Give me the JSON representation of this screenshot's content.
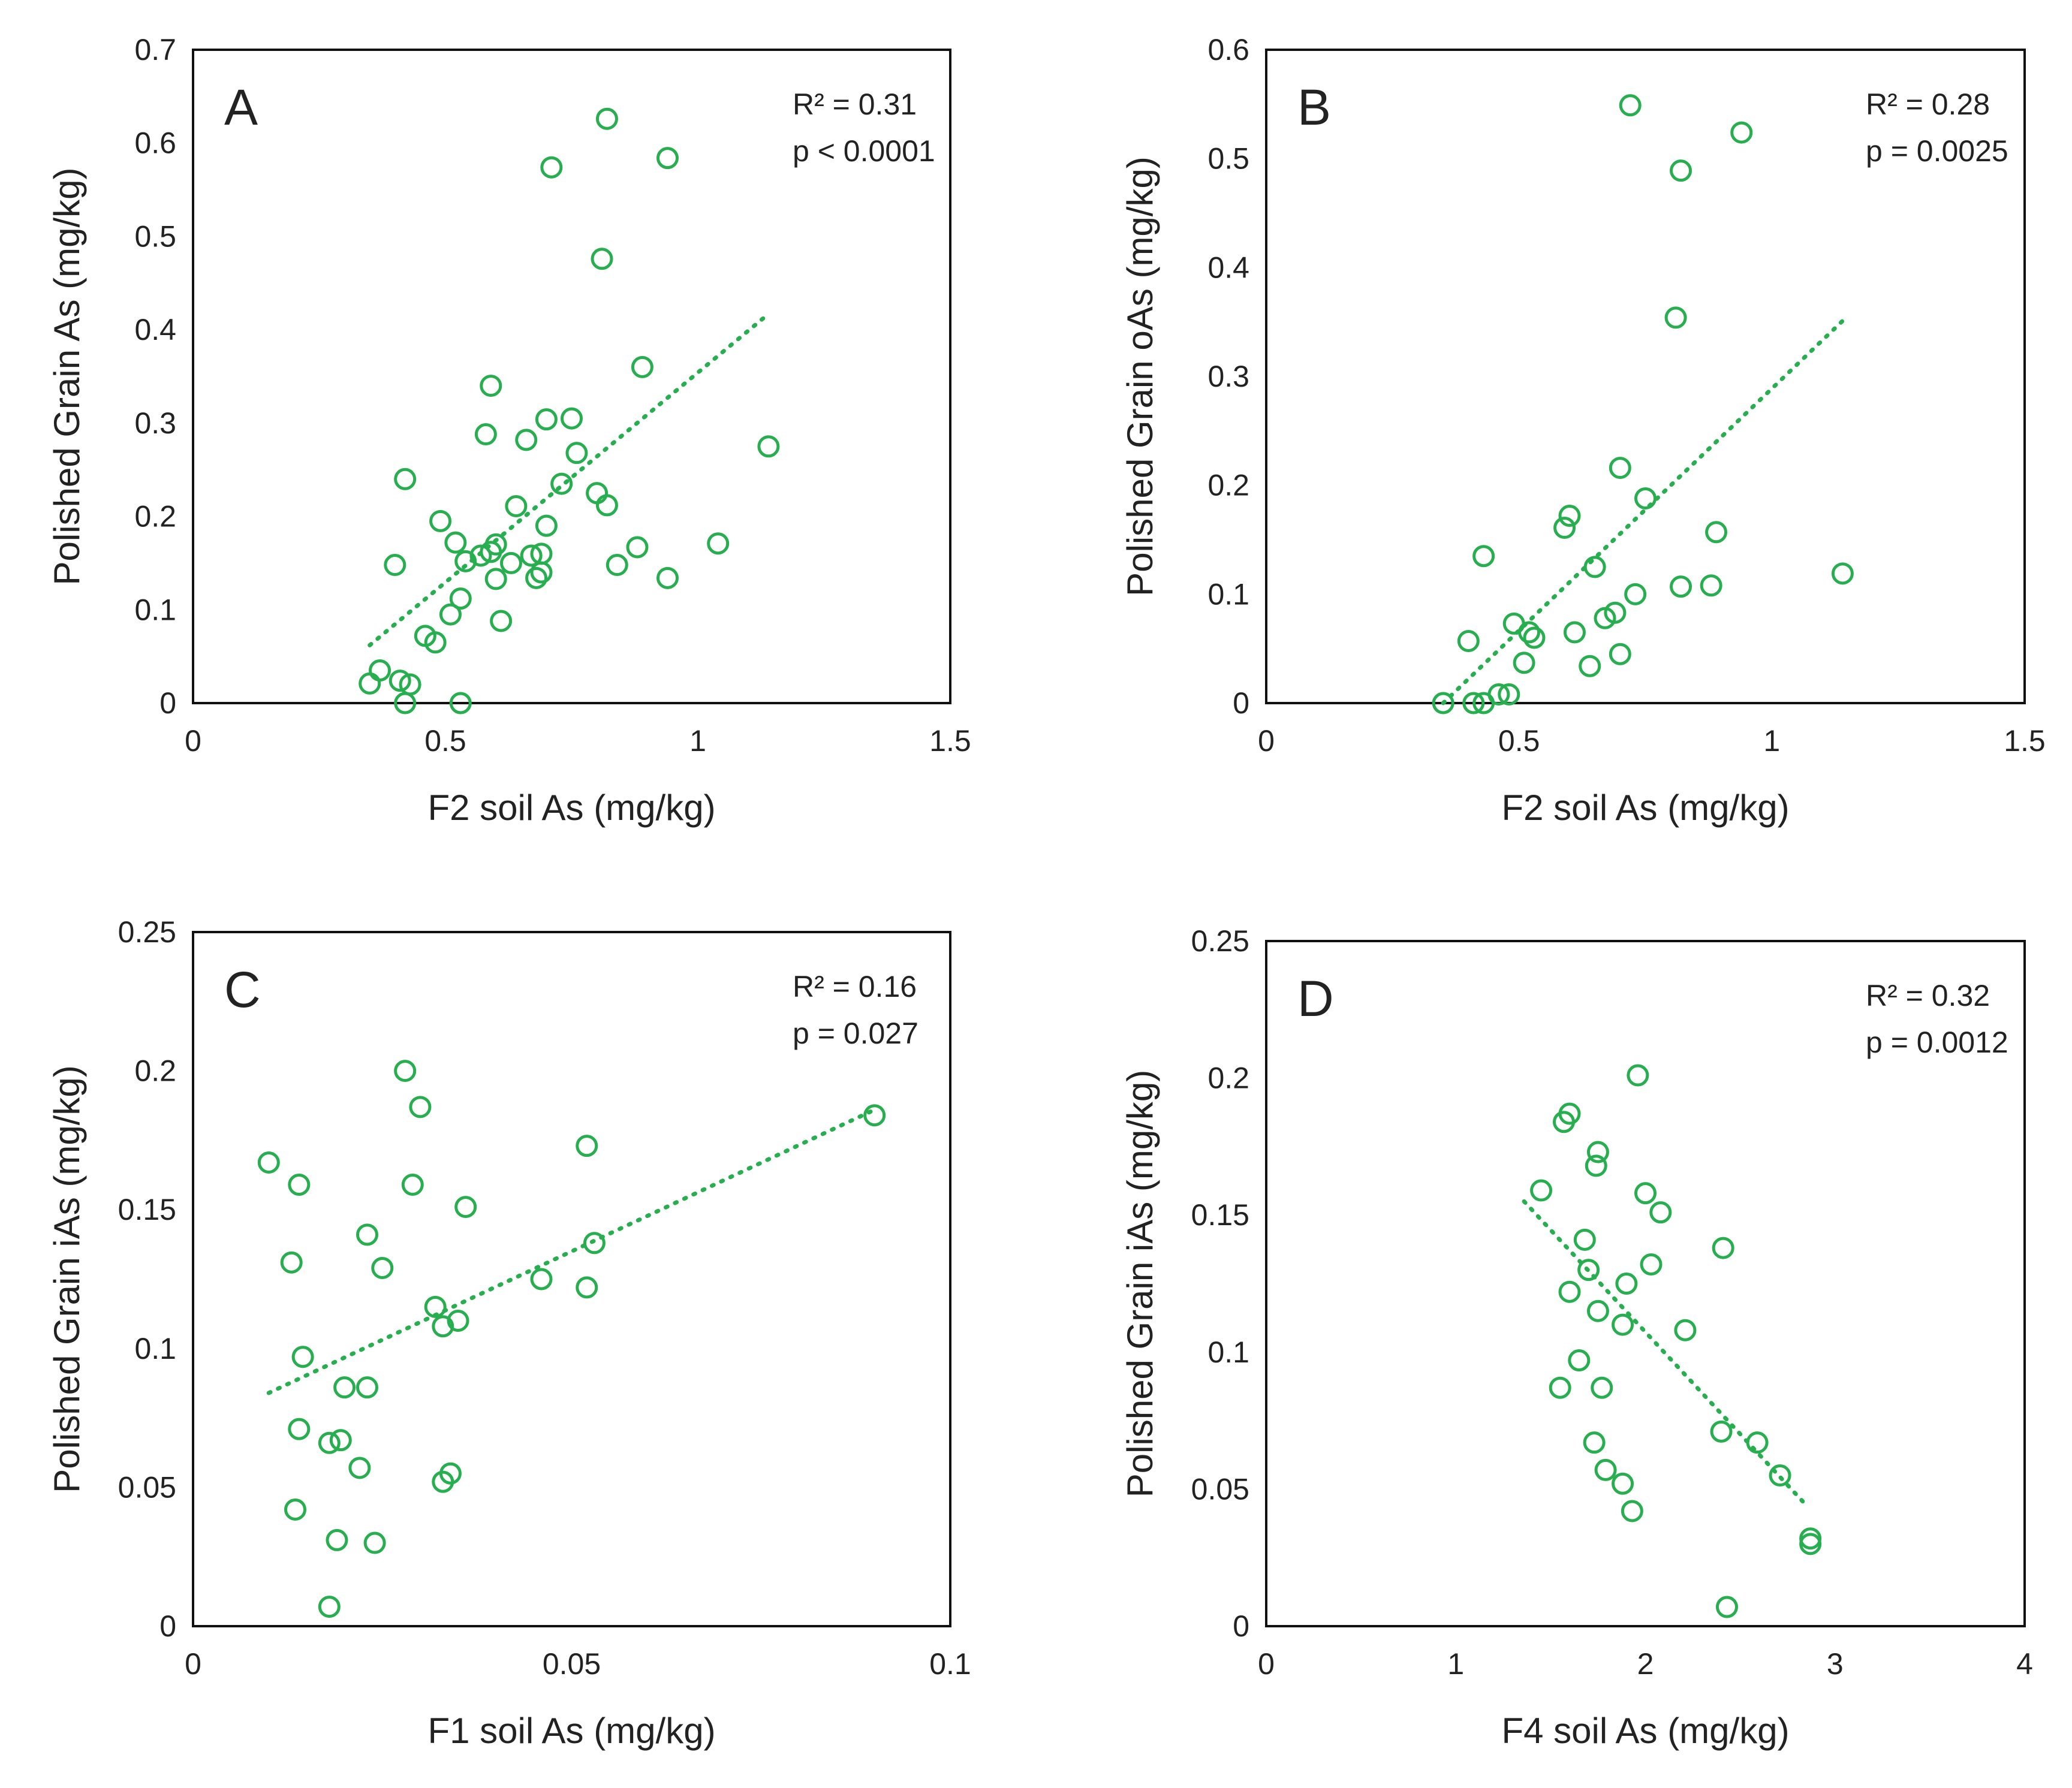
{
  "colors": {
    "marker": "#27ae4f",
    "axis": "#111111",
    "text": "#222222"
  },
  "chart_data": [
    {
      "type": "scatter",
      "panel": "A",
      "xlabel": "F2 soil As (mg/kg)",
      "ylabel": "Polished Grain As (mg/kg)",
      "xlim": [
        0,
        1.5
      ],
      "ylim": [
        0,
        0.7
      ],
      "xticks": [
        0,
        0.5,
        1,
        1.5
      ],
      "xtick_labels": [
        "0",
        "0.5",
        "1",
        "1.5"
      ],
      "yticks": [
        0,
        0.1,
        0.2,
        0.3,
        0.4,
        0.5,
        0.6,
        0.7
      ],
      "ytick_labels": [
        "0",
        "0.1",
        "0.2",
        "0.3",
        "0.4",
        "0.5",
        "0.6",
        "0.7"
      ],
      "stats": [
        "R² = 0.31",
        "p < 0.0001"
      ],
      "trendline": [
        [
          0.35,
          0.062
        ],
        [
          1.14,
          0.417
        ]
      ],
      "points": [
        [
          0.35,
          0.021
        ],
        [
          0.37,
          0.035
        ],
        [
          0.41,
          0.024
        ],
        [
          0.42,
          0.0
        ],
        [
          0.43,
          0.02
        ],
        [
          0.53,
          0.0
        ],
        [
          0.4,
          0.148
        ],
        [
          0.42,
          0.24
        ],
        [
          0.46,
          0.072
        ],
        [
          0.48,
          0.065
        ],
        [
          0.49,
          0.195
        ],
        [
          0.51,
          0.095
        ],
        [
          0.52,
          0.172
        ],
        [
          0.53,
          0.112
        ],
        [
          0.54,
          0.152
        ],
        [
          0.57,
          0.158
        ],
        [
          0.58,
          0.288
        ],
        [
          0.59,
          0.162
        ],
        [
          0.59,
          0.34
        ],
        [
          0.6,
          0.133
        ],
        [
          0.6,
          0.17
        ],
        [
          0.61,
          0.088
        ],
        [
          0.63,
          0.15
        ],
        [
          0.64,
          0.211
        ],
        [
          0.66,
          0.282
        ],
        [
          0.67,
          0.158
        ],
        [
          0.68,
          0.134
        ],
        [
          0.69,
          0.14
        ],
        [
          0.69,
          0.16
        ],
        [
          0.7,
          0.19
        ],
        [
          0.7,
          0.304
        ],
        [
          0.71,
          0.574
        ],
        [
          0.73,
          0.235
        ],
        [
          0.75,
          0.305
        ],
        [
          0.76,
          0.268
        ],
        [
          0.8,
          0.225
        ],
        [
          0.81,
          0.476
        ],
        [
          0.82,
          0.212
        ],
        [
          0.82,
          0.626
        ],
        [
          0.84,
          0.148
        ],
        [
          0.88,
          0.167
        ],
        [
          0.89,
          0.36
        ],
        [
          0.94,
          0.134
        ],
        [
          0.94,
          0.584
        ],
        [
          1.04,
          0.171
        ],
        [
          1.14,
          0.275
        ]
      ]
    },
    {
      "type": "scatter",
      "panel": "B",
      "xlabel": "F2 soil As (mg/kg)",
      "ylabel": "Polished Grain oAs (mg/kg)",
      "xlim": [
        0,
        1.5
      ],
      "ylim": [
        0,
        0.6
      ],
      "xticks": [
        0,
        0.5,
        1,
        1.5
      ],
      "xtick_labels": [
        "0",
        "0.5",
        "1",
        "1.5"
      ],
      "yticks": [
        0,
        0.1,
        0.2,
        0.3,
        0.4,
        0.5,
        0.6
      ],
      "ytick_labels": [
        "0",
        "0.1",
        "0.2",
        "0.3",
        "0.4",
        "0.5",
        "0.6"
      ],
      "stats": [
        "R² = 0.28",
        "p = 0.0025"
      ],
      "trendline": [
        [
          0.35,
          0.0
        ],
        [
          1.14,
          0.351
        ]
      ],
      "points": [
        [
          0.35,
          0.0
        ],
        [
          0.4,
          0.057
        ],
        [
          0.41,
          0.0
        ],
        [
          0.43,
          0.0
        ],
        [
          0.43,
          0.135
        ],
        [
          0.46,
          0.008
        ],
        [
          0.48,
          0.008
        ],
        [
          0.49,
          0.073
        ],
        [
          0.51,
          0.037
        ],
        [
          0.52,
          0.065
        ],
        [
          0.53,
          0.06
        ],
        [
          0.59,
          0.161
        ],
        [
          0.6,
          0.172
        ],
        [
          0.61,
          0.065
        ],
        [
          0.64,
          0.034
        ],
        [
          0.65,
          0.125
        ],
        [
          0.67,
          0.078
        ],
        [
          0.69,
          0.083
        ],
        [
          0.7,
          0.045
        ],
        [
          0.7,
          0.216
        ],
        [
          0.72,
          0.549
        ],
        [
          0.73,
          0.1
        ],
        [
          0.75,
          0.188
        ],
        [
          0.81,
          0.354
        ],
        [
          0.82,
          0.107
        ],
        [
          0.82,
          0.489
        ],
        [
          0.88,
          0.108
        ],
        [
          0.89,
          0.157
        ],
        [
          0.94,
          0.524
        ],
        [
          1.14,
          0.119
        ]
      ]
    },
    {
      "type": "scatter",
      "panel": "C",
      "xlabel": "F1 soil As (mg/kg)",
      "ylabel": "Polished Grain iAs (mg/kg)",
      "xlim": [
        0,
        0.1
      ],
      "ylim": [
        0,
        0.25
      ],
      "xticks": [
        0,
        0.05,
        0.1
      ],
      "xtick_labels": [
        "0",
        "0.05",
        "0.1"
      ],
      "yticks": [
        0,
        0.05,
        0.1,
        0.15,
        0.2,
        0.25
      ],
      "ytick_labels": [
        "0",
        "0.05",
        "0.1",
        "0.15",
        "0.2",
        "0.25"
      ],
      "stats": [
        "R² = 0.16",
        "p = 0.027"
      ],
      "trendline": [
        [
          0.01,
          0.084
        ],
        [
          0.09,
          0.186
        ]
      ],
      "points": [
        [
          0.01,
          0.167
        ],
        [
          0.013,
          0.131
        ],
        [
          0.0135,
          0.042
        ],
        [
          0.014,
          0.159
        ],
        [
          0.014,
          0.071
        ],
        [
          0.0145,
          0.097
        ],
        [
          0.018,
          0.066
        ],
        [
          0.018,
          0.007
        ],
        [
          0.019,
          0.031
        ],
        [
          0.0195,
          0.067
        ],
        [
          0.02,
          0.086
        ],
        [
          0.022,
          0.057
        ],
        [
          0.023,
          0.086
        ],
        [
          0.023,
          0.141
        ],
        [
          0.024,
          0.03
        ],
        [
          0.025,
          0.129
        ],
        [
          0.028,
          0.2
        ],
        [
          0.029,
          0.159
        ],
        [
          0.03,
          0.187
        ],
        [
          0.032,
          0.115
        ],
        [
          0.033,
          0.108
        ],
        [
          0.033,
          0.052
        ],
        [
          0.034,
          0.055
        ],
        [
          0.035,
          0.11
        ],
        [
          0.036,
          0.151
        ],
        [
          0.046,
          0.125
        ],
        [
          0.052,
          0.173
        ],
        [
          0.052,
          0.122
        ],
        [
          0.053,
          0.138
        ],
        [
          0.09,
          0.184
        ]
      ]
    },
    {
      "type": "scatter",
      "panel": "D",
      "xlabel": "F4 soil As (mg/kg)",
      "ylabel": "Polished Grain iAs (mg/kg)",
      "xlim": [
        0,
        4
      ],
      "ylim": [
        0,
        0.25
      ],
      "xticks": [
        0,
        1,
        2,
        3,
        4
      ],
      "xtick_labels": [
        "0",
        "1",
        "2",
        "3",
        "4"
      ],
      "yticks": [
        0,
        0.05,
        0.1,
        0.15,
        0.2,
        0.25
      ],
      "ytick_labels": [
        "0",
        "0.05",
        "0.1",
        "0.15",
        "0.2",
        "0.25"
      ],
      "stats": [
        "R² = 0.32",
        "p = 0.0012"
      ],
      "trendline": [
        [
          1.36,
          0.155
        ],
        [
          2.85,
          0.044
        ]
      ],
      "points": [
        [
          1.45,
          0.159
        ],
        [
          1.55,
          0.087
        ],
        [
          1.57,
          0.184
        ],
        [
          1.6,
          0.187
        ],
        [
          1.6,
          0.122
        ],
        [
          1.65,
          0.097
        ],
        [
          1.68,
          0.141
        ],
        [
          1.7,
          0.13
        ],
        [
          1.73,
          0.067
        ],
        [
          1.74,
          0.168
        ],
        [
          1.75,
          0.115
        ],
        [
          1.75,
          0.173
        ],
        [
          1.77,
          0.087
        ],
        [
          1.79,
          0.057
        ],
        [
          1.88,
          0.052
        ],
        [
          1.88,
          0.11
        ],
        [
          1.9,
          0.125
        ],
        [
          1.93,
          0.042
        ],
        [
          1.96,
          0.201
        ],
        [
          2.0,
          0.158
        ],
        [
          2.03,
          0.132
        ],
        [
          2.08,
          0.151
        ],
        [
          2.21,
          0.108
        ],
        [
          2.4,
          0.071
        ],
        [
          2.41,
          0.138
        ],
        [
          2.43,
          0.007
        ],
        [
          2.59,
          0.067
        ],
        [
          2.71,
          0.055
        ],
        [
          2.87,
          0.03
        ],
        [
          2.87,
          0.032
        ]
      ]
    }
  ]
}
